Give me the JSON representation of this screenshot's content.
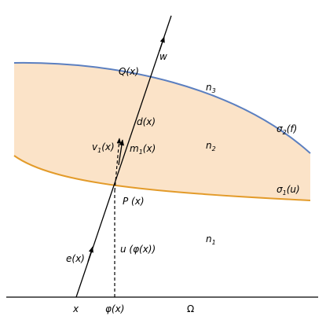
{
  "labels": {
    "w": {
      "text": "w"
    },
    "Q": {
      "text": "Q(x)"
    },
    "n3": {
      "text": "n",
      "sub": "3"
    },
    "d": {
      "text": "d(x)"
    },
    "v1": {
      "text": "v",
      "sub": "1",
      "suffix": "(x)"
    },
    "m1": {
      "text": "m",
      "sub": "1",
      "suffix": "(x)"
    },
    "n2": {
      "text": "n",
      "sub": "2"
    },
    "sigma2": {
      "text": "σ",
      "sub": "2",
      "suffix": "(f)"
    },
    "sigma1": {
      "text": "σ",
      "sub": "1",
      "suffix": "(u)"
    },
    "P": {
      "text": "P (x)"
    },
    "u": {
      "text": "u (φ(x))"
    },
    "n1": {
      "text": "n",
      "sub": "1"
    },
    "e": {
      "text": "e(x)"
    },
    "x": {
      "text": "x"
    },
    "phi": {
      "text": "φ(x)"
    },
    "omega": {
      "text": "Ω"
    }
  }
}
